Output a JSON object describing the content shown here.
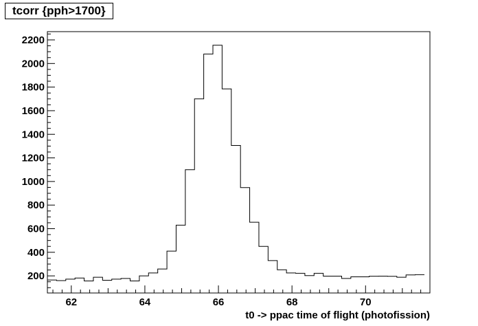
{
  "chart_data": {
    "type": "histogram",
    "title": "tcorr {pph>1700}",
    "xlabel": "t0 -> ppac time of flight (photofission)",
    "ylabel": "",
    "xlim": [
      61.35,
      71.75
    ],
    "ylim": [
      55,
      2270
    ],
    "x_ticks": [
      62,
      64,
      66,
      68,
      70
    ],
    "y_ticks": [
      200,
      400,
      600,
      800,
      1000,
      1200,
      1400,
      1600,
      1800,
      2000,
      2200
    ],
    "bin_width": 0.25,
    "x_start": 61.35,
    "grid": false,
    "values": [
      165,
      160,
      172,
      182,
      157,
      188,
      163,
      172,
      178,
      157,
      200,
      225,
      258,
      410,
      630,
      1100,
      1700,
      2080,
      2155,
      1785,
      1305,
      948,
      655,
      450,
      330,
      252,
      225,
      222,
      202,
      222,
      198,
      198,
      178,
      192,
      192,
      197,
      198,
      196,
      188,
      208,
      210
    ]
  }
}
